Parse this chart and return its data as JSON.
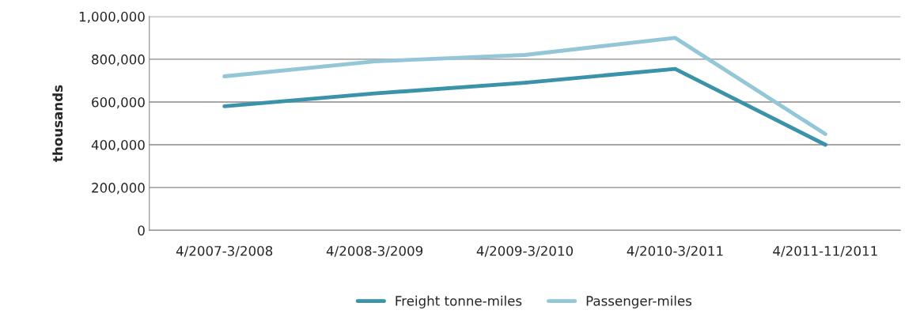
{
  "chart_data": {
    "type": "line",
    "ylabel": "thousands",
    "categories": [
      "4/2007-3/2008",
      "4/2008-3/2009",
      "4/2009-3/2010",
      "4/2010-3/2011",
      "4/2011-11/2011"
    ],
    "series": [
      {
        "name": "Freight tonne-miles",
        "color": "#3a93a8",
        "values": [
          580000,
          640000,
          690000,
          755000,
          400000
        ]
      },
      {
        "name": "Passenger-miles",
        "color": "#93c6d6",
        "values": [
          720000,
          790000,
          820000,
          900000,
          450000
        ]
      }
    ],
    "ylim": [
      0,
      1000000
    ],
    "yticks": [
      {
        "value": 0,
        "label": "0"
      },
      {
        "value": 200000,
        "label": "200,000"
      },
      {
        "value": 400000,
        "label": "400,000"
      },
      {
        "value": 600000,
        "label": "600,000"
      },
      {
        "value": 800000,
        "label": "800,000"
      },
      {
        "value": 1000000,
        "label": "1,000,000"
      }
    ],
    "grid": "y",
    "legend": "bottom",
    "marker": "none",
    "line_style": "solid"
  }
}
